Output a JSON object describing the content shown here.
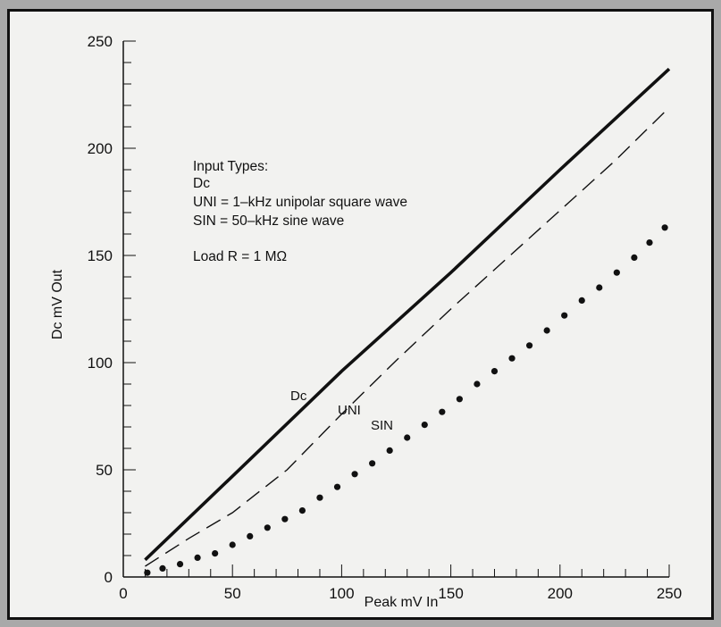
{
  "chart_data": {
    "type": "line",
    "xlabel": "Peak mV In",
    "ylabel": "Dc mV Out",
    "xlim": [
      0,
      250
    ],
    "ylim": [
      0,
      250
    ],
    "x_ticks": [
      "0",
      "50",
      "100",
      "150",
      "200",
      "250"
    ],
    "y_ticks": [
      "0",
      "50",
      "100",
      "150",
      "200",
      "250"
    ],
    "grid": false,
    "annotations": {
      "legend_lines": [
        "Input Types:",
        "Dc",
        "UNI = 1–kHz unipolar square wave",
        "SIN = 50–kHz sine wave",
        "",
        "Load R = 1 MΩ"
      ]
    },
    "series": [
      {
        "name": "Dc",
        "style": "solid-thick",
        "x": [
          10,
          50,
          100,
          150,
          200,
          250
        ],
        "y": [
          8,
          47,
          96,
          142,
          190,
          237
        ]
      },
      {
        "name": "UNI",
        "style": "dashed",
        "x": [
          10,
          30,
          50,
          75,
          100,
          125,
          150,
          175,
          200,
          225,
          248
        ],
        "y": [
          5,
          18,
          30,
          50,
          76,
          101,
          125,
          148,
          171,
          194,
          217
        ]
      },
      {
        "name": "SIN",
        "style": "dotted",
        "x": [
          11,
          18,
          26,
          34,
          42,
          50,
          58,
          66,
          74,
          82,
          90,
          98,
          106,
          114,
          122,
          130,
          138,
          146,
          154,
          162,
          170,
          178,
          186,
          194,
          202,
          210,
          218,
          226,
          234,
          241,
          248
        ],
        "y": [
          2,
          4,
          6,
          9,
          11,
          15,
          19,
          23,
          27,
          31,
          37,
          42,
          48,
          53,
          59,
          65,
          71,
          77,
          83,
          90,
          96,
          102,
          108,
          115,
          122,
          129,
          135,
          142,
          149,
          156,
          163
        ]
      }
    ]
  }
}
